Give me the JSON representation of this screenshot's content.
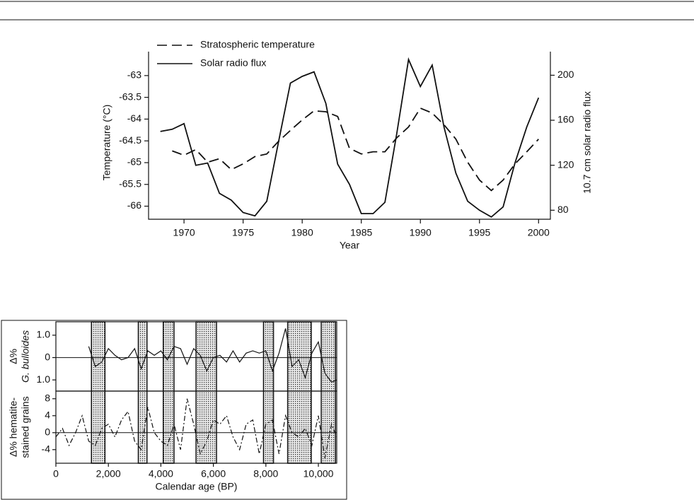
{
  "chart_data": [
    {
      "type": "line",
      "xlabel": "Year",
      "ylabel": "Temperature (°C)",
      "y2label": "10.7 cm solar radio flux",
      "x": [
        1968,
        1969,
        1970,
        1971,
        1972,
        1973,
        1974,
        1975,
        1976,
        1977,
        1978,
        1979,
        1980,
        1981,
        1982,
        1983,
        1984,
        1985,
        1986,
        1987,
        1988,
        1989,
        1990,
        1991,
        1992,
        1993,
        1994,
        1995,
        1996,
        1997,
        1998,
        1999,
        2000
      ],
      "xlim": [
        1967,
        2001
      ],
      "xticks": [
        1970,
        1975,
        1980,
        1985,
        1990,
        1995,
        2000
      ],
      "ylim": [
        -66.3,
        -62.45
      ],
      "yticks": [
        -63,
        -63.5,
        -64,
        -64.5,
        -65,
        -65.5,
        -66
      ],
      "y2lim": [
        72,
        221
      ],
      "y2ticks": [
        80,
        120,
        160,
        200
      ],
      "series": [
        {
          "name": "Stratospheric temperature",
          "color": "#111",
          "style": "dashed",
          "values": [
            null,
            -64.73,
            -64.83,
            -64.7,
            -64.99,
            -64.91,
            -65.16,
            -65.03,
            -64.86,
            -64.8,
            -64.51,
            -64.26,
            -64.02,
            -63.81,
            -63.83,
            -63.94,
            -64.67,
            -64.8,
            -64.75,
            -64.75,
            -64.43,
            -64.18,
            -63.75,
            -63.86,
            -64.13,
            -64.46,
            -64.99,
            -65.4,
            -65.64,
            -65.4,
            -65.03,
            -64.75,
            -64.46
          ]
        },
        {
          "name": "Solar radio flux",
          "color": "#111",
          "style": "solid",
          "axis": "y2",
          "values": [
            150,
            152,
            157,
            120,
            122,
            95,
            89,
            78,
            75,
            88,
            141,
            193,
            199,
            203,
            175,
            121,
            103,
            77,
            77,
            87,
            148,
            214,
            190,
            209,
            154,
            113,
            88,
            80,
            74,
            83,
            122,
            154,
            180
          ]
        }
      ]
    },
    {
      "type": "line",
      "xlabel": "Calendar age (BP)",
      "xlim": [
        0,
        10700
      ],
      "xticks": [
        0,
        {
          "value": 2000,
          "label": "2,000"
        },
        {
          "value": 4000,
          "label": "4,000"
        },
        {
          "value": 6000,
          "label": "6,000"
        },
        {
          "value": 8000,
          "label": "8,000"
        },
        {
          "value": 10000,
          "label": "10,000"
        }
      ],
      "bands": [
        [
          1355,
          1870
        ],
        [
          3140,
          3470
        ],
        [
          4090,
          4500
        ],
        [
          5340,
          6120
        ],
        [
          7910,
          8290
        ],
        [
          8830,
          9730
        ],
        [
          10110,
          10650
        ]
      ],
      "panels": [
        {
          "ylabel": [
            "Δ%",
            "G. bulloides"
          ],
          "ylim": [
            -1.5,
            1.6
          ],
          "yticks": [
            {
              "value": 1,
              "label": "1.0"
            },
            0,
            {
              "value": -1,
              "label": "1.0"
            }
          ],
          "series": [
            {
              "color": "#111",
              "style": "solid",
              "x": [
                1250,
                1500,
                1750,
                2000,
                2250,
                2500,
                2750,
                3000,
                3250,
                3500,
                3750,
                4000,
                4250,
                4500,
                4750,
                5000,
                5250,
                5500,
                5750,
                6000,
                6250,
                6500,
                6750,
                7000,
                7250,
                7500,
                7750,
                8000,
                8250,
                8500,
                8750,
                9000,
                9250,
                9500,
                9750,
                10000,
                10250,
                10500,
                10700
              ],
              "values": [
                0.5,
                -0.4,
                -0.2,
                0.4,
                0.1,
                -0.1,
                0,
                0.4,
                -0.5,
                0.3,
                0.1,
                0.3,
                -0.1,
                0.5,
                0.4,
                -0.3,
                0.4,
                0.1,
                -0.6,
                0,
                0.1,
                -0.2,
                0.3,
                -0.2,
                0.2,
                0.3,
                0.2,
                0.3,
                -0.6,
                0.2,
                1.3,
                -0.4,
                -0.1,
                -0.9,
                0.2,
                0.7,
                -0.7,
                -1.1,
                -1
              ]
            }
          ]
        },
        {
          "ylabel": [
            "Δ% hematite-",
            "stained grains"
          ],
          "ylim": [
            -7.2,
            9.8
          ],
          "yticks": [
            8,
            4,
            0,
            -4
          ],
          "series": [
            {
              "color": "#111",
              "style": "dashdot",
              "x": [
                0,
                250,
                500,
                750,
                1000,
                1250,
                1500,
                1750,
                2000,
                2250,
                2500,
                2750,
                3000,
                3250,
                3500,
                3750,
                4000,
                4250,
                4500,
                4750,
                5000,
                5250,
                5500,
                5750,
                6000,
                6250,
                6500,
                6750,
                7000,
                7250,
                7500,
                7750,
                8000,
                8250,
                8500,
                8750,
                9000,
                9250,
                9500,
                9750,
                10000,
                10250,
                10500,
                10700
              ],
              "values": [
                -1,
                1,
                -3,
                0,
                4,
                -2,
                -3,
                1,
                2,
                -1,
                3,
                5,
                -2,
                -4,
                6,
                0,
                -2,
                -3,
                2,
                -4,
                8,
                2,
                -5,
                -2,
                3,
                2,
                4,
                -1,
                -4,
                2,
                3,
                -5,
                2,
                3,
                -5,
                4,
                0,
                -1,
                1,
                -3,
                4,
                -6,
                2,
                -1
              ]
            }
          ]
        }
      ]
    }
  ]
}
